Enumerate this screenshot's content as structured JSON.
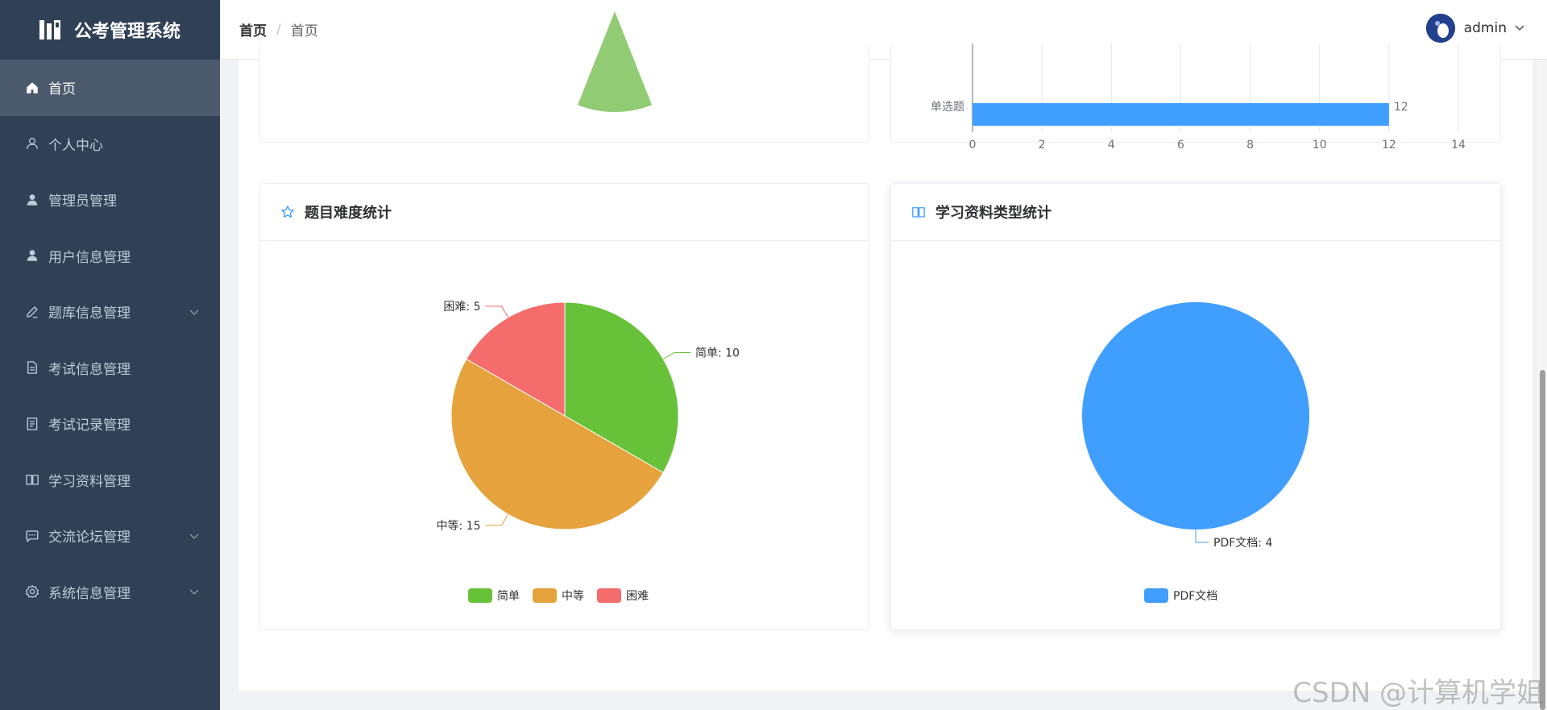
{
  "app": {
    "title": "公考管理系统"
  },
  "sidebar": {
    "items": [
      {
        "label": "首页",
        "icon": "home-icon",
        "active": true
      },
      {
        "label": "个人中心",
        "icon": "user-outline-icon"
      },
      {
        "label": "管理员管理",
        "icon": "user-icon"
      },
      {
        "label": "用户信息管理",
        "icon": "user-icon"
      },
      {
        "label": "题库信息管理",
        "icon": "edit-icon",
        "expandable": true
      },
      {
        "label": "考试信息管理",
        "icon": "document-icon"
      },
      {
        "label": "考试记录管理",
        "icon": "notebook-icon"
      },
      {
        "label": "学习资料管理",
        "icon": "book-icon"
      },
      {
        "label": "交流论坛管理",
        "icon": "chat-icon",
        "expandable": true
      },
      {
        "label": "系统信息管理",
        "icon": "gear-icon",
        "expandable": true
      }
    ]
  },
  "header": {
    "breadcrumb": [
      "首页",
      "首页"
    ],
    "breadcrumb_sep": "/",
    "user_name": "admin"
  },
  "top_bar_chart": {
    "category_label": "单选题",
    "value_label": "12",
    "ticks": [
      "0",
      "2",
      "4",
      "6",
      "8",
      "10",
      "12",
      "14"
    ]
  },
  "difficulty_card": {
    "title": "题目难度统计",
    "icon": "star-icon",
    "legend": [
      "简单",
      "中等",
      "困难"
    ]
  },
  "material_card": {
    "title": "学习资料类型统计",
    "icon": "book-icon",
    "legend": [
      "PDF文档"
    ]
  },
  "chart_data": [
    {
      "type": "bar",
      "orientation": "horizontal",
      "categories": [
        "单选题"
      ],
      "values": [
        12
      ],
      "xlim": [
        0,
        14
      ],
      "xticks": [
        0,
        2,
        4,
        6,
        8,
        10,
        12,
        14
      ],
      "color": "#409eff",
      "partially_visible": true
    },
    {
      "type": "pie",
      "title": "题目难度统计",
      "labels": [
        "简单",
        "中等",
        "困难"
      ],
      "values": [
        10,
        15,
        5
      ],
      "data_labels": [
        "简单: 10",
        "中等: 15",
        "困难: 5"
      ],
      "colors": [
        "#67c23a",
        "#e6a23c",
        "#f56c6c"
      ],
      "legend": "bottom"
    },
    {
      "type": "pie",
      "title": "学习资料类型统计",
      "labels": [
        "PDF文档"
      ],
      "values": [
        4
      ],
      "data_labels": [
        "PDF文档: 4"
      ],
      "colors": [
        "#409eff"
      ],
      "legend": "bottom"
    }
  ],
  "watermark": "CSDN @计算机学姐"
}
